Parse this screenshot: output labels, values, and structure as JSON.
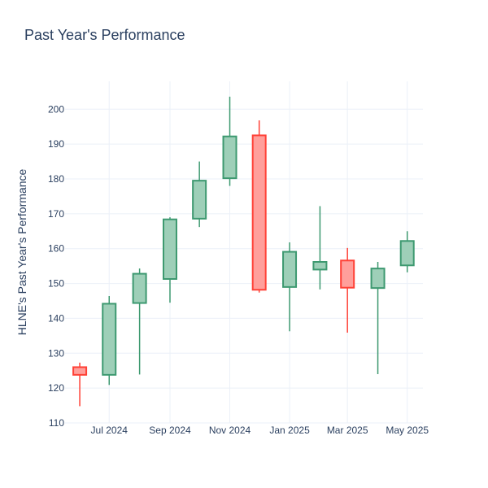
{
  "chart_data": {
    "type": "candlestick",
    "title": "Past Year's Performance",
    "ylabel": "HLNE's Past Year's Performance",
    "xlabel": "",
    "ylim": [
      110,
      208
    ],
    "y_ticks": [
      110,
      120,
      130,
      140,
      150,
      160,
      170,
      180,
      190,
      200
    ],
    "x_ticks": [
      {
        "label": "Jul 2024",
        "date": "2024-07-01"
      },
      {
        "label": "Sep 2024",
        "date": "2024-09-01"
      },
      {
        "label": "Nov 2024",
        "date": "2024-11-01"
      },
      {
        "label": "Jan 2025",
        "date": "2025-01-01"
      },
      {
        "label": "Mar 2025",
        "date": "2025-03-01"
      },
      {
        "label": "May 2025",
        "date": "2025-05-01"
      }
    ],
    "colors": {
      "increasing": "#3d9970",
      "increasing_fill": "#9ecfb8",
      "decreasing": "#ff4136",
      "decreasing_fill": "#ff9f9b"
    },
    "grid": true,
    "candles": [
      {
        "date": "2024-06-01",
        "open": 126.0,
        "high": 127.3,
        "low": 114.8,
        "close": 123.8
      },
      {
        "date": "2024-07-01",
        "open": 123.8,
        "high": 146.4,
        "low": 120.9,
        "close": 144.2
      },
      {
        "date": "2024-08-01",
        "open": 144.4,
        "high": 154.3,
        "low": 123.9,
        "close": 152.8
      },
      {
        "date": "2024-09-01",
        "open": 151.3,
        "high": 169.0,
        "low": 144.5,
        "close": 168.4
      },
      {
        "date": "2024-10-01",
        "open": 168.6,
        "high": 185.0,
        "low": 166.2,
        "close": 179.5
      },
      {
        "date": "2024-11-01",
        "open": 180.2,
        "high": 203.6,
        "low": 178.0,
        "close": 192.2
      },
      {
        "date": "2024-12-01",
        "open": 192.5,
        "high": 196.8,
        "low": 147.4,
        "close": 148.2
      },
      {
        "date": "2025-01-01",
        "open": 149.0,
        "high": 161.8,
        "low": 136.3,
        "close": 159.1
      },
      {
        "date": "2025-02-01",
        "open": 154.0,
        "high": 172.2,
        "low": 148.3,
        "close": 156.2
      },
      {
        "date": "2025-03-01",
        "open": 156.6,
        "high": 160.2,
        "low": 135.9,
        "close": 148.8
      },
      {
        "date": "2025-04-01",
        "open": 148.7,
        "high": 156.2,
        "low": 124.0,
        "close": 154.3
      },
      {
        "date": "2025-05-01",
        "open": 155.2,
        "high": 165.0,
        "low": 153.2,
        "close": 162.2
      }
    ]
  }
}
